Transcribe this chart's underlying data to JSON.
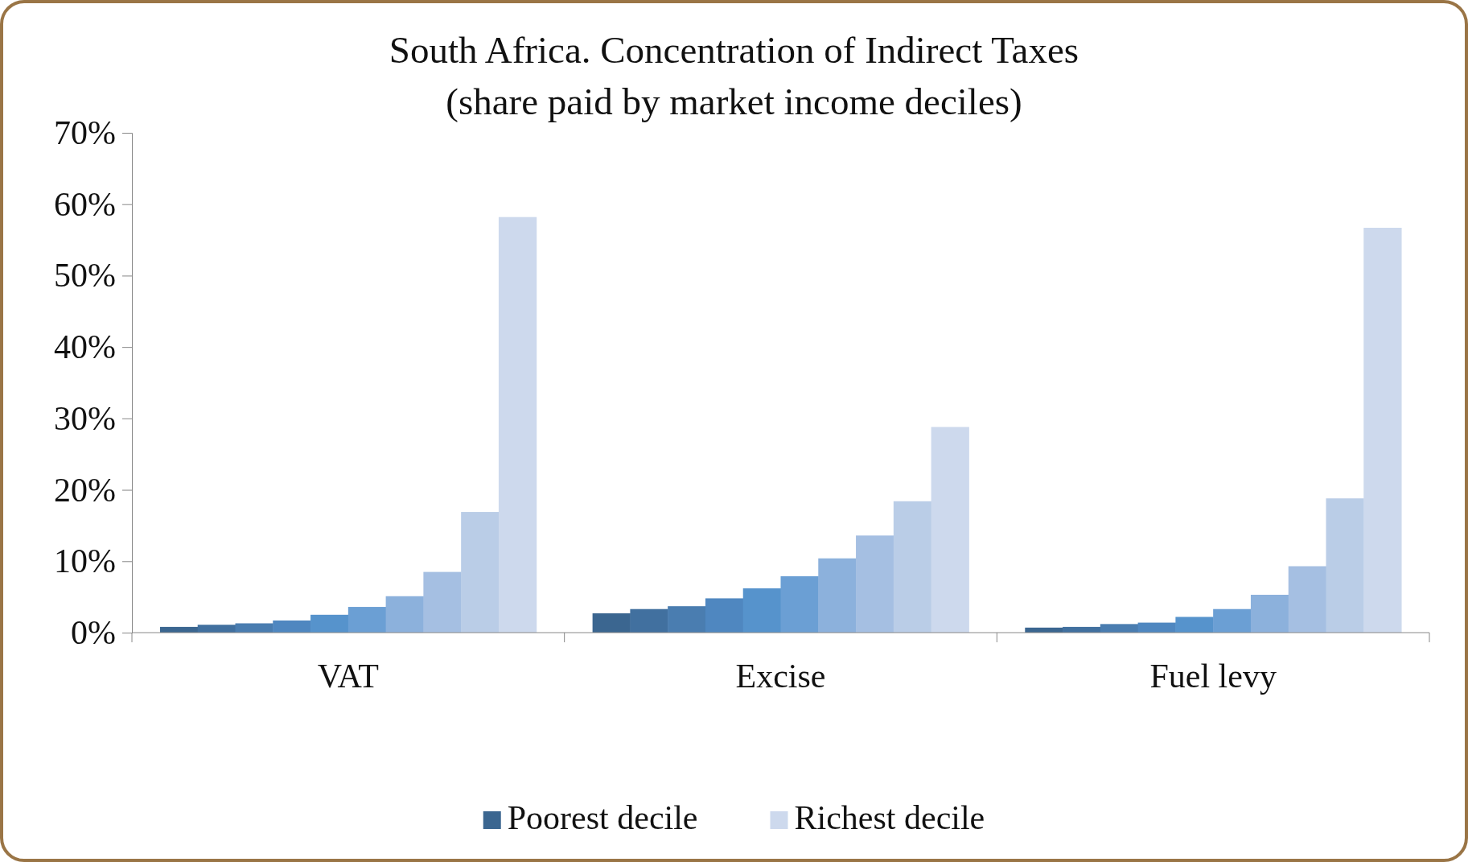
{
  "chart_data": {
    "type": "bar",
    "title": "South Africa. Concentration of Indirect Taxes\n(share paid by market income deciles)",
    "categories": [
      "VAT",
      "Excise",
      "Fuel levy"
    ],
    "series": [
      {
        "name": "Poorest decile",
        "color": "#3b6690",
        "values": [
          0.8,
          2.7,
          0.7
        ]
      },
      {
        "color": "#41709f",
        "values": [
          1.1,
          3.3,
          0.8
        ]
      },
      {
        "color": "#4a7db0",
        "values": [
          1.3,
          3.7,
          1.2
        ]
      },
      {
        "color": "#4f87c0",
        "values": [
          1.7,
          4.8,
          1.4
        ]
      },
      {
        "color": "#5693cc",
        "values": [
          2.5,
          6.2,
          2.2
        ]
      },
      {
        "color": "#6b9fd4",
        "values": [
          3.6,
          7.9,
          3.3
        ]
      },
      {
        "color": "#8cb1dc",
        "values": [
          5.1,
          10.4,
          5.3
        ]
      },
      {
        "color": "#a5bfe2",
        "values": [
          8.5,
          13.6,
          9.3
        ]
      },
      {
        "color": "#bacde7",
        "values": [
          16.9,
          18.4,
          18.8
        ]
      },
      {
        "name": "Richest decile",
        "color": "#cdd9ed",
        "values": [
          58.2,
          28.8,
          56.7
        ]
      }
    ],
    "ylim": [
      0,
      70
    ],
    "yticks": [
      {
        "value": 0,
        "label": "0%"
      },
      {
        "value": 10,
        "label": "10%"
      },
      {
        "value": 20,
        "label": "20%"
      },
      {
        "value": 30,
        "label": "30%"
      },
      {
        "value": 40,
        "label": "40%"
      },
      {
        "value": 50,
        "label": "50%"
      },
      {
        "value": 60,
        "label": "60%"
      },
      {
        "value": 70,
        "label": "70%"
      }
    ],
    "legend": "bottom"
  }
}
